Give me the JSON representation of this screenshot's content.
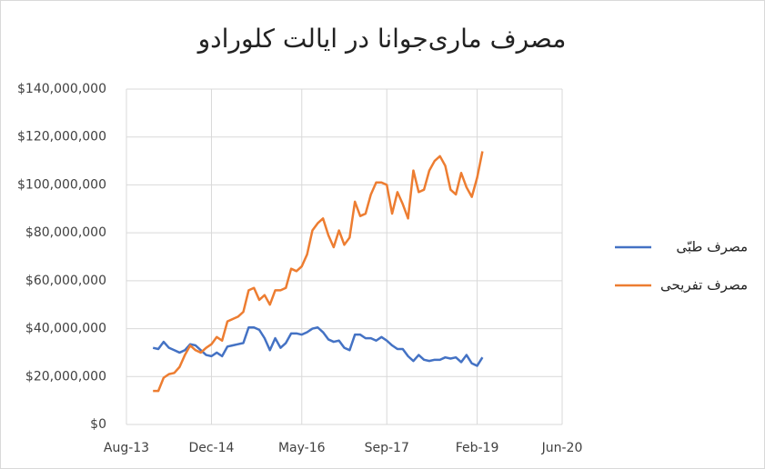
{
  "chart_data": {
    "type": "line",
    "title": "مصرف ماری‌جوانا در ایالت کلورادو",
    "x": [
      "2014-01",
      "2014-02",
      "2014-03",
      "2014-04",
      "2014-05",
      "2014-06",
      "2014-07",
      "2014-08",
      "2014-09",
      "2014-10",
      "2014-11",
      "2014-12",
      "2015-01",
      "2015-02",
      "2015-03",
      "2015-04",
      "2015-05",
      "2015-06",
      "2015-07",
      "2015-08",
      "2015-09",
      "2015-10",
      "2015-11",
      "2015-12",
      "2016-01",
      "2016-02",
      "2016-03",
      "2016-04",
      "2016-05",
      "2016-06",
      "2016-07",
      "2016-08",
      "2016-09",
      "2016-10",
      "2016-11",
      "2016-12",
      "2017-01",
      "2017-02",
      "2017-03",
      "2017-04",
      "2017-05",
      "2017-06",
      "2017-07",
      "2017-08",
      "2017-09",
      "2017-10",
      "2017-11",
      "2017-12",
      "2018-01",
      "2018-02",
      "2018-03",
      "2018-04",
      "2018-05",
      "2018-06",
      "2018-07",
      "2018-08",
      "2018-09",
      "2018-10",
      "2018-11",
      "2018-12",
      "2019-01",
      "2019-02",
      "2019-03"
    ],
    "series": [
      {
        "name": "مصرف طبّی",
        "color": "#4472c4",
        "values": [
          32000000,
          31500000,
          34500000,
          32000000,
          31000000,
          30000000,
          31000000,
          33500000,
          33000000,
          31000000,
          29000000,
          28500000,
          30000000,
          28500000,
          32500000,
          33000000,
          33500000,
          34000000,
          40500000,
          40500000,
          39500000,
          36000000,
          31000000,
          36000000,
          32000000,
          34000000,
          38000000,
          38000000,
          37500000,
          38500000,
          40000000,
          40500000,
          38500000,
          35500000,
          34500000,
          35000000,
          32000000,
          31000000,
          37500000,
          37500000,
          36000000,
          36000000,
          35000000,
          36500000,
          35000000,
          33000000,
          31500000,
          31500000,
          28500000,
          26500000,
          29000000,
          27000000,
          26500000,
          27000000,
          27000000,
          28000000,
          27500000,
          28000000,
          26000000,
          29000000,
          25500000,
          24500000,
          28000000
        ]
      },
      {
        "name": "مصرف تفریحی",
        "color": "#ed7d31",
        "values": [
          14000000,
          14000000,
          19500000,
          21000000,
          21500000,
          24000000,
          29000000,
          33000000,
          31000000,
          30000000,
          32000000,
          33500000,
          36500000,
          35000000,
          43000000,
          44000000,
          45000000,
          47000000,
          56000000,
          57000000,
          52000000,
          54000000,
          50000000,
          56000000,
          56000000,
          57000000,
          65000000,
          64000000,
          66000000,
          71000000,
          81000000,
          84000000,
          86000000,
          79000000,
          74000000,
          81000000,
          75000000,
          78000000,
          93000000,
          87000000,
          88000000,
          96000000,
          101000000,
          101000000,
          100000000,
          88000000,
          97000000,
          92000000,
          86000000,
          106000000,
          97000000,
          98000000,
          106000000,
          110000000,
          112000000,
          108000000,
          98000000,
          96000000,
          105000000,
          99000000,
          95000000,
          103000000,
          114000000
        ]
      }
    ],
    "xlim": [
      "2013-08",
      "2020-06"
    ],
    "xticks": [
      {
        "value": "2013-08",
        "label": "Aug-13"
      },
      {
        "value": "2014-12",
        "label": "Dec-14"
      },
      {
        "value": "2016-05",
        "label": "May-16"
      },
      {
        "value": "2017-09",
        "label": "Sep-17"
      },
      {
        "value": "2019-02",
        "label": "Feb-19"
      },
      {
        "value": "2020-06",
        "label": "Jun-20"
      }
    ],
    "ylim": [
      0,
      140000000
    ],
    "yticks": [
      {
        "value": 0,
        "label": "$0"
      },
      {
        "value": 20000000,
        "label": "$20,000,000"
      },
      {
        "value": 40000000,
        "label": "$40,000,000"
      },
      {
        "value": 60000000,
        "label": "$60,000,000"
      },
      {
        "value": 80000000,
        "label": "$80,000,000"
      },
      {
        "value": 100000000,
        "label": "$100,000,000"
      },
      {
        "value": 120000000,
        "label": "$120,000,000"
      },
      {
        "value": 140000000,
        "label": "$140,000,000"
      }
    ],
    "grid": true,
    "legend": "right"
  }
}
